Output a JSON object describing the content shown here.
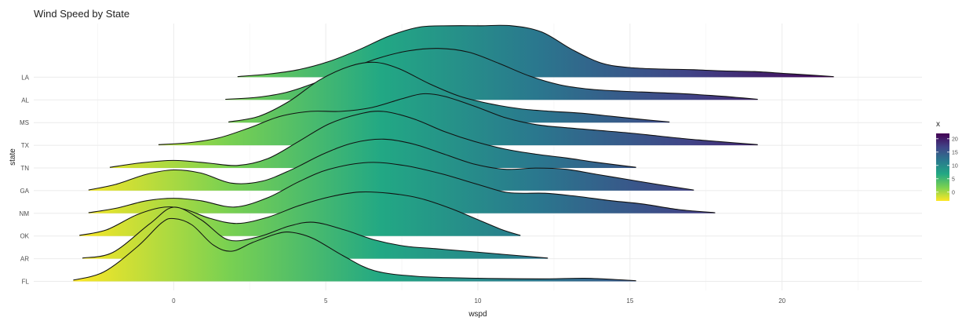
{
  "chart_data": {
    "type": "ridgeline",
    "title": "Wind Speed by State",
    "xlabel": "wspd",
    "ylabel": "state",
    "xlim": [
      -4.6,
      24.6
    ],
    "x_ticks": [
      0,
      5,
      10,
      15,
      20
    ],
    "grid": true,
    "legend": {
      "title": "x",
      "placement": "right",
      "ticks": [
        20,
        15,
        10,
        5,
        0
      ],
      "range": [
        -3.3,
        22
      ],
      "colors": [
        "#FDE725",
        "#7AD151",
        "#22A884",
        "#2A788E",
        "#414487",
        "#440154"
      ]
    },
    "states": [
      "FL",
      "AR",
      "OK",
      "NM",
      "GA",
      "TN",
      "TX",
      "MS",
      "AL",
      "LA"
    ],
    "series": [
      {
        "name": "FL",
        "range": [
          -3.3,
          15.2
        ],
        "points": [
          [
            -3.3,
            0.02
          ],
          [
            -2.3,
            0.15
          ],
          [
            -1.2,
            0.55
          ],
          [
            -0.4,
            0.93
          ],
          [
            0,
            1.0
          ],
          [
            0.6,
            0.9
          ],
          [
            1.3,
            0.58
          ],
          [
            1.9,
            0.48
          ],
          [
            2.6,
            0.62
          ],
          [
            3.4,
            0.76
          ],
          [
            3.9,
            0.78
          ],
          [
            4.6,
            0.68
          ],
          [
            5.6,
            0.4
          ],
          [
            6.6,
            0.17
          ],
          [
            8,
            0.08
          ],
          [
            10,
            0.05
          ],
          [
            12,
            0.04
          ],
          [
            13.5,
            0.05
          ],
          [
            14.5,
            0.03
          ],
          [
            15.2,
            0.01
          ]
        ]
      },
      {
        "name": "AR",
        "range": [
          -3.0,
          12.3
        ],
        "points": [
          [
            -3.0,
            0.01
          ],
          [
            -2,
            0.1
          ],
          [
            -0.8,
            0.55
          ],
          [
            0,
            0.82
          ],
          [
            0.9,
            0.62
          ],
          [
            1.8,
            0.3
          ],
          [
            2.8,
            0.35
          ],
          [
            3.8,
            0.52
          ],
          [
            4.6,
            0.58
          ],
          [
            5.6,
            0.46
          ],
          [
            6.6,
            0.3
          ],
          [
            7.6,
            0.2
          ],
          [
            8.6,
            0.16
          ],
          [
            9.6,
            0.12
          ],
          [
            10.8,
            0.07
          ],
          [
            12.3,
            0.01
          ]
        ]
      },
      {
        "name": "OK",
        "range": [
          -3.1,
          11.4
        ],
        "points": [
          [
            -3.1,
            0.01
          ],
          [
            -2.2,
            0.1
          ],
          [
            -1.2,
            0.34
          ],
          [
            -0.3,
            0.46
          ],
          [
            0.4,
            0.42
          ],
          [
            1.2,
            0.28
          ],
          [
            2.1,
            0.2
          ],
          [
            3.1,
            0.3
          ],
          [
            4.1,
            0.48
          ],
          [
            5.1,
            0.62
          ],
          [
            6.1,
            0.7
          ],
          [
            7.1,
            0.68
          ],
          [
            8.1,
            0.6
          ],
          [
            9.1,
            0.44
          ],
          [
            10.1,
            0.24
          ],
          [
            10.8,
            0.1
          ],
          [
            11.4,
            0.01
          ]
        ]
      },
      {
        "name": "NM",
        "range": [
          -2.8,
          17.8
        ],
        "points": [
          [
            -2.8,
            0.01
          ],
          [
            -1.9,
            0.08
          ],
          [
            -0.9,
            0.2
          ],
          [
            0,
            0.24
          ],
          [
            0.9,
            0.2
          ],
          [
            2,
            0.1
          ],
          [
            3.1,
            0.25
          ],
          [
            4.1,
            0.5
          ],
          [
            5.1,
            0.7
          ],
          [
            6.4,
            0.81
          ],
          [
            7.6,
            0.76
          ],
          [
            8.8,
            0.63
          ],
          [
            10,
            0.46
          ],
          [
            11,
            0.33
          ],
          [
            12.2,
            0.32
          ],
          [
            13.1,
            0.28
          ],
          [
            14.4,
            0.2
          ],
          [
            15.4,
            0.15
          ],
          [
            16.6,
            0.06
          ],
          [
            17.8,
            0.01
          ]
        ]
      },
      {
        "name": "GA",
        "range": [
          -2.8,
          17.1
        ],
        "points": [
          [
            -2.8,
            0.01
          ],
          [
            -1.9,
            0.1
          ],
          [
            -0.9,
            0.26
          ],
          [
            0,
            0.33
          ],
          [
            0.9,
            0.28
          ],
          [
            1.9,
            0.12
          ],
          [
            2.9,
            0.15
          ],
          [
            3.9,
            0.34
          ],
          [
            4.9,
            0.58
          ],
          [
            5.9,
            0.76
          ],
          [
            6.9,
            0.82
          ],
          [
            7.9,
            0.74
          ],
          [
            8.9,
            0.58
          ],
          [
            9.9,
            0.42
          ],
          [
            10.9,
            0.34
          ],
          [
            11.9,
            0.36
          ],
          [
            12.9,
            0.34
          ],
          [
            13.9,
            0.26
          ],
          [
            14.9,
            0.18
          ],
          [
            15.9,
            0.1
          ],
          [
            17.1,
            0.01
          ]
        ]
      },
      {
        "name": "TN",
        "range": [
          -2.1,
          15.2
        ],
        "points": [
          [
            -2.1,
            0.01
          ],
          [
            -1.1,
            0.08
          ],
          [
            0,
            0.12
          ],
          [
            1.1,
            0.08
          ],
          [
            2.1,
            0.04
          ],
          [
            3.1,
            0.15
          ],
          [
            4.1,
            0.42
          ],
          [
            5.1,
            0.7
          ],
          [
            6.1,
            0.86
          ],
          [
            6.9,
            0.9
          ],
          [
            7.9,
            0.78
          ],
          [
            8.9,
            0.58
          ],
          [
            9.9,
            0.42
          ],
          [
            10.9,
            0.3
          ],
          [
            11.9,
            0.22
          ],
          [
            12.9,
            0.16
          ],
          [
            13.9,
            0.09
          ],
          [
            15.2,
            0.01
          ]
        ]
      },
      {
        "name": "TX",
        "range": [
          -0.5,
          19.2
        ],
        "points": [
          [
            -0.5,
            0.01
          ],
          [
            0.5,
            0.04
          ],
          [
            1.5,
            0.12
          ],
          [
            2.5,
            0.28
          ],
          [
            3.5,
            0.46
          ],
          [
            4.5,
            0.54
          ],
          [
            5.5,
            0.54
          ],
          [
            6.5,
            0.6
          ],
          [
            7.5,
            0.74
          ],
          [
            8.2,
            0.82
          ],
          [
            8.9,
            0.78
          ],
          [
            9.9,
            0.62
          ],
          [
            10.9,
            0.44
          ],
          [
            11.9,
            0.33
          ],
          [
            12.9,
            0.28
          ],
          [
            13.9,
            0.24
          ],
          [
            14.9,
            0.2
          ],
          [
            15.9,
            0.15
          ],
          [
            16.9,
            0.1
          ],
          [
            17.9,
            0.06
          ],
          [
            19.2,
            0.01
          ]
        ]
      },
      {
        "name": "MS",
        "range": [
          1.8,
          16.3
        ],
        "points": [
          [
            1.8,
            0.01
          ],
          [
            2.8,
            0.1
          ],
          [
            3.8,
            0.34
          ],
          [
            4.8,
            0.68
          ],
          [
            5.8,
            0.9
          ],
          [
            6.6,
            0.96
          ],
          [
            7.4,
            0.86
          ],
          [
            8.4,
            0.62
          ],
          [
            9.4,
            0.42
          ],
          [
            10.4,
            0.3
          ],
          [
            11.4,
            0.22
          ],
          [
            12.4,
            0.18
          ],
          [
            13.4,
            0.15
          ],
          [
            14.4,
            0.1
          ],
          [
            15.4,
            0.05
          ],
          [
            16.3,
            0.01
          ]
        ]
      },
      {
        "name": "AL",
        "range": [
          1.7,
          19.2
        ],
        "points": [
          [
            1.7,
            0.01
          ],
          [
            2.7,
            0.04
          ],
          [
            3.7,
            0.12
          ],
          [
            4.7,
            0.28
          ],
          [
            5.7,
            0.48
          ],
          [
            6.7,
            0.66
          ],
          [
            7.7,
            0.78
          ],
          [
            8.7,
            0.82
          ],
          [
            9.7,
            0.76
          ],
          [
            10.7,
            0.58
          ],
          [
            11.7,
            0.38
          ],
          [
            12.7,
            0.24
          ],
          [
            13.7,
            0.17
          ],
          [
            14.7,
            0.14
          ],
          [
            15.7,
            0.12
          ],
          [
            16.7,
            0.1
          ],
          [
            17.7,
            0.07
          ],
          [
            18.5,
            0.04
          ],
          [
            19.2,
            0.01
          ]
        ]
      },
      {
        "name": "LA",
        "range": [
          2.1,
          21.7
        ],
        "points": [
          [
            2.1,
            0.01
          ],
          [
            3.1,
            0.05
          ],
          [
            4.1,
            0.12
          ],
          [
            5.1,
            0.25
          ],
          [
            6.1,
            0.44
          ],
          [
            7.1,
            0.66
          ],
          [
            8.1,
            0.8
          ],
          [
            9.1,
            0.82
          ],
          [
            10.1,
            0.82
          ],
          [
            11.1,
            0.82
          ],
          [
            12.1,
            0.72
          ],
          [
            13.1,
            0.44
          ],
          [
            14.1,
            0.22
          ],
          [
            15.1,
            0.15
          ],
          [
            16.1,
            0.13
          ],
          [
            17.1,
            0.12
          ],
          [
            18.1,
            0.1
          ],
          [
            19.1,
            0.09
          ],
          [
            20.1,
            0.06
          ],
          [
            21.1,
            0.03
          ],
          [
            21.7,
            0.01
          ]
        ]
      }
    ]
  }
}
